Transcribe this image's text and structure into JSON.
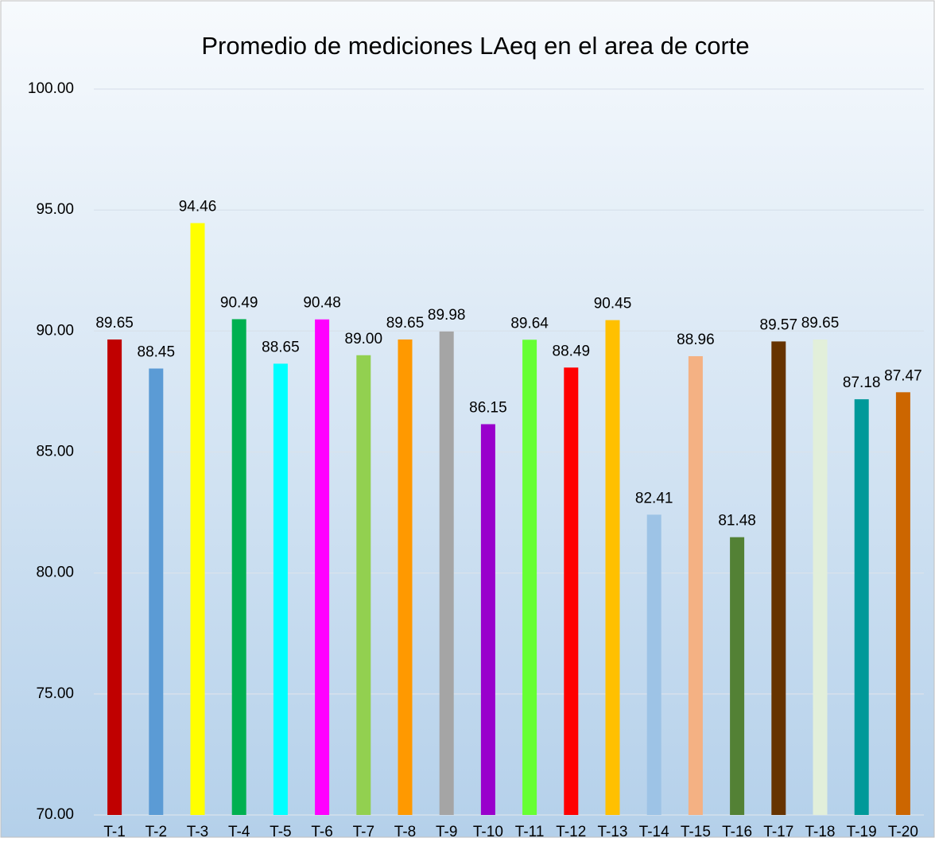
{
  "chart_data": {
    "type": "bar",
    "title": "Promedio de mediciones LAeq en el area de corte",
    "categories": [
      "T-1",
      "T-2",
      "T-3",
      "T-4",
      "T-5",
      "T-6",
      "T-7",
      "T-8",
      "T-9",
      "T-10",
      "T-11",
      "T-12",
      "T-13",
      "T-14",
      "T-15",
      "T-16",
      "T-17",
      "T-18",
      "T-19",
      "T-20"
    ],
    "values": [
      89.65,
      88.45,
      94.46,
      90.49,
      88.65,
      90.48,
      89.0,
      89.65,
      89.98,
      86.15,
      89.64,
      88.49,
      90.45,
      82.41,
      88.96,
      81.48,
      89.57,
      89.65,
      87.18,
      87.47
    ],
    "value_labels": [
      "89.65",
      "88.45",
      "94.46",
      "90.49",
      "88.65",
      "90.48",
      "89.00",
      "89.65",
      "89.98",
      "86.15",
      "89.64",
      "88.49",
      "90.45",
      "82.41",
      "88.96",
      "81.48",
      "89.57",
      "89.65",
      "87.18",
      "87.47"
    ],
    "colors": [
      "#c00000",
      "#5b9bd5",
      "#ffff00",
      "#00b050",
      "#00ffff",
      "#ff00ff",
      "#92d050",
      "#ff9900",
      "#a5a5a5",
      "#9900cc",
      "#66ff33",
      "#ff0000",
      "#ffc000",
      "#9dc3e6",
      "#f4b183",
      "#538135",
      "#663300",
      "#e2efda",
      "#009999",
      "#cc6600"
    ],
    "ylim": [
      70,
      100
    ],
    "yticks": [
      {
        "value": 70,
        "label": "70.00"
      },
      {
        "value": 75,
        "label": "75.00"
      },
      {
        "value": 80,
        "label": "80.00"
      },
      {
        "value": 85,
        "label": "85.00"
      },
      {
        "value": 90,
        "label": "90.00"
      },
      {
        "value": 95,
        "label": "95.00"
      },
      {
        "value": 100,
        "label": "100.00"
      }
    ],
    "grid": true
  }
}
